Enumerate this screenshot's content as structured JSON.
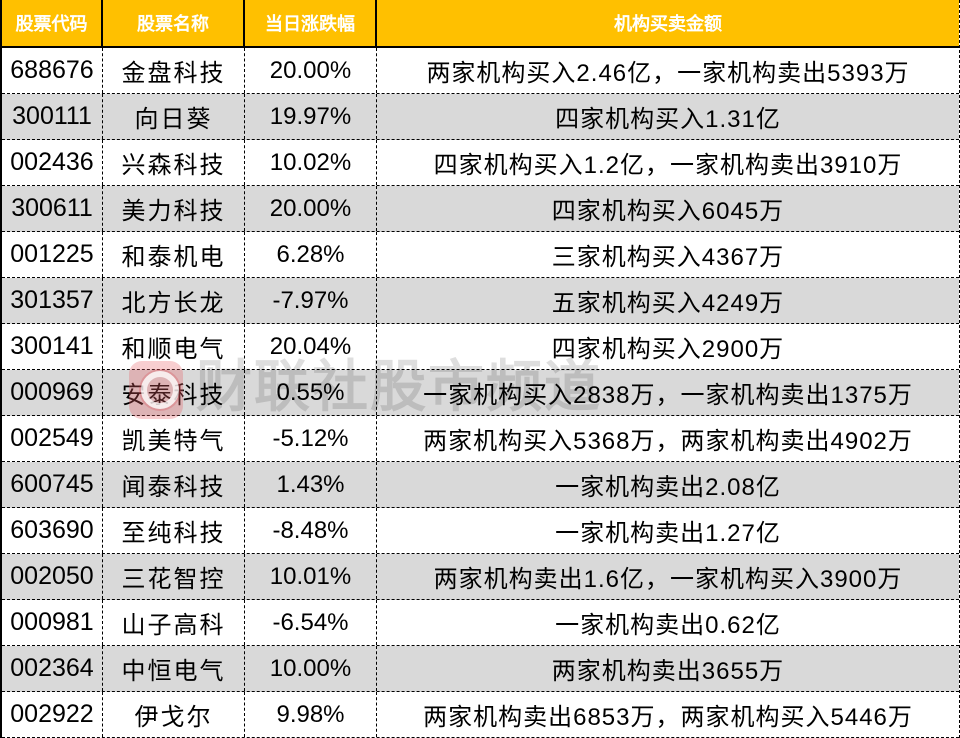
{
  "chart_data": {
    "type": "table",
    "columns": [
      "股票代码",
      "股票名称",
      "当日涨跌幅",
      "机构买卖金额"
    ],
    "rows": [
      [
        "688676",
        "金盘科技",
        "20.00%",
        "两家机构买入2.46亿，一家机构卖出5393万"
      ],
      [
        "300111",
        "向日葵",
        "19.97%",
        "四家机构买入1.31亿"
      ],
      [
        "002436",
        "兴森科技",
        "10.02%",
        "四家机构买入1.2亿，一家机构卖出3910万"
      ],
      [
        "300611",
        "美力科技",
        "20.00%",
        "四家机构买入6045万"
      ],
      [
        "001225",
        "和泰机电",
        "6.28%",
        "三家机构买入4367万"
      ],
      [
        "301357",
        "北方长龙",
        "-7.97%",
        "五家机构买入4249万"
      ],
      [
        "300141",
        "和顺电气",
        "20.04%",
        "四家机构买入2900万"
      ],
      [
        "000969",
        "安泰科技",
        "0.55%",
        "一家机构买入2838万，一家机构卖出1375万"
      ],
      [
        "002549",
        "凯美特气",
        "-5.12%",
        "两家机构买入5368万，两家机构卖出4902万"
      ],
      [
        "600745",
        "闻泰科技",
        "1.43%",
        "一家机构卖出2.08亿"
      ],
      [
        "603690",
        "至纯科技",
        "-8.48%",
        "一家机构卖出1.27亿"
      ],
      [
        "002050",
        "三花智控",
        "10.01%",
        "两家机构卖出1.6亿，一家机构买入3900万"
      ],
      [
        "000981",
        "山子高科",
        "-6.54%",
        "一家机构卖出0.62亿"
      ],
      [
        "002364",
        "中恒电气",
        "10.00%",
        "两家机构卖出3655万"
      ],
      [
        "002922",
        "伊戈尔",
        "9.98%",
        "两家机构卖出6853万，两家机构买入5446万"
      ]
    ],
    "layout": {
      "zebra_striping": true,
      "alt_rows": "even"
    }
  },
  "watermark": {
    "text": "财联社股市频道",
    "logo": "cailianshe-app-icon"
  },
  "colors": {
    "header_bg": "#FFC000",
    "header_text": "#FFFFFF",
    "row_alt_bg": "#D9D9D9",
    "border": "#000000",
    "watermark_red": "#E75C65"
  }
}
